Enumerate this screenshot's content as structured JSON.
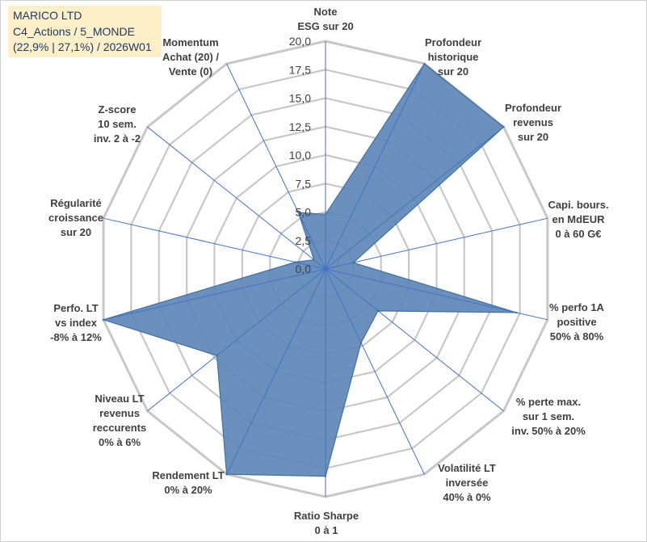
{
  "header": {
    "company": "MARICO LTD",
    "category": "C4_Actions / 5_MONDE",
    "stats": "(22,9% | 27,1%) / 2026W01"
  },
  "chart_data": {
    "type": "radar",
    "rmin": 0,
    "rmax": 20,
    "ticks": [
      "0,0",
      "2,5",
      "5,0",
      "7,5",
      "10,0",
      "12,5",
      "15,0",
      "17,5",
      "20,0"
    ],
    "tick_values": [
      0,
      2.5,
      5,
      7.5,
      10,
      12.5,
      15,
      17.5,
      20
    ],
    "gridlines": true,
    "fill_color": "#5b84b7",
    "stroke_color": "#41719c",
    "grid_color": "#c8c8c8",
    "axis_line_color": "#4472c4",
    "axes": [
      {
        "label": [
          "Note",
          "ESG sur 20"
        ],
        "value": 4.8
      },
      {
        "label": [
          "Profondeur",
          "historique",
          "sur 20"
        ],
        "value": 20
      },
      {
        "label": [
          "Profondeur",
          "revenus",
          "sur 20"
        ],
        "value": 20
      },
      {
        "label": [
          "Capi. bours.",
          "en MdEUR",
          "0 à 60 G€"
        ],
        "value": 2.5
      },
      {
        "label": [
          "% perfo 1A",
          "positive",
          "50% à 80%"
        ],
        "value": 17.2
      },
      {
        "label": [
          "% perte max.",
          "sur 1 sem.",
          "inv. 50% à 20%"
        ],
        "value": 5.9
      },
      {
        "label": [
          "Volatilité LT",
          "inversée",
          "40% à 0%"
        ],
        "value": 7.2
      },
      {
        "label": [
          "Ratio Sharpe",
          "0 à 1"
        ],
        "value": 18.2
      },
      {
        "label": [
          "Rendement LT",
          "0% à 20%"
        ],
        "value": 20
      },
      {
        "label": [
          "Niveau LT",
          "revenus",
          "reccurents",
          "0% à 6%"
        ],
        "value": 12.2
      },
      {
        "label": [
          "Perfo. LT",
          "vs index",
          "-8% à 12%"
        ],
        "value": 20
      },
      {
        "label": [
          "Régularité",
          "croissance",
          "sur 20"
        ],
        "value": 2.7
      },
      {
        "label": [
          "Z-score",
          "10 sem.",
          "inv. 2 à -2"
        ],
        "value": 1.3
      },
      {
        "label": [
          "Momentum",
          "Achat (20) /",
          "Vente (0)"
        ],
        "value": 5.5
      }
    ]
  }
}
